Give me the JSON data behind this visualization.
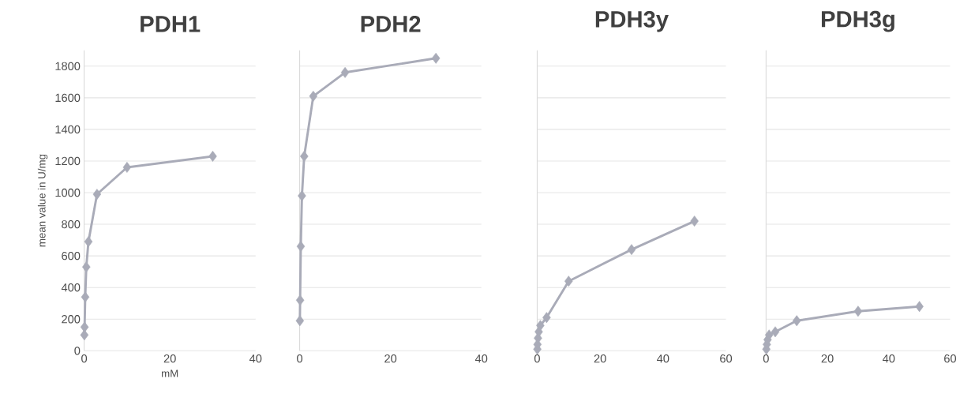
{
  "chart_data": [
    {
      "type": "line",
      "title": "PDH1",
      "xlabel": "mM",
      "ylabel": "mean value in U/mg",
      "color": "#a9abb8",
      "marker": "diamond",
      "grid": "y",
      "x": [
        0.05,
        0.1,
        0.25,
        0.5,
        1,
        3,
        10,
        30
      ],
      "values": [
        100,
        150,
        340,
        530,
        690,
        990,
        1160,
        1230
      ],
      "xlim": [
        0,
        40
      ],
      "xticks": [
        0,
        20,
        40
      ],
      "ylim": [
        0,
        1900
      ],
      "yticks": [
        0,
        200,
        400,
        600,
        800,
        1000,
        1200,
        1400,
        1600,
        1800
      ]
    },
    {
      "type": "line",
      "title": "PDH2",
      "color": "#a9abb8",
      "marker": "diamond",
      "grid": "y",
      "tick_labels": "x",
      "x": [
        0.05,
        0.1,
        0.25,
        0.5,
        1,
        3,
        10,
        30
      ],
      "values": [
        190,
        320,
        660,
        980,
        1230,
        1610,
        1760,
        1850
      ],
      "xlim": [
        0,
        40
      ],
      "xticks": [
        0,
        20,
        40
      ],
      "ylim": [
        0,
        1900
      ],
      "yticks": [
        0,
        200,
        400,
        600,
        800,
        1000,
        1200,
        1400,
        1600,
        1800
      ]
    },
    {
      "type": "line",
      "title": "PDH3y",
      "color": "#a9abb8",
      "marker": "diamond",
      "grid": "y",
      "tick_labels": "x",
      "x": [
        0.05,
        0.1,
        0.25,
        0.5,
        1,
        3,
        10,
        30,
        50
      ],
      "values": [
        10,
        40,
        80,
        120,
        160,
        210,
        440,
        640,
        820
      ],
      "xlim": [
        0,
        60
      ],
      "xticks": [
        0,
        20,
        40,
        60
      ],
      "ylim": [
        0,
        1900
      ],
      "yticks": [
        0,
        200,
        400,
        600,
        800,
        1000,
        1200,
        1400,
        1600,
        1800
      ]
    },
    {
      "type": "line",
      "title": "PDH3g",
      "color": "#a9abb8",
      "marker": "diamond",
      "grid": "y",
      "tick_labels": "x",
      "x": [
        0.1,
        0.25,
        0.5,
        1,
        3,
        10,
        30,
        50
      ],
      "values": [
        10,
        40,
        70,
        100,
        120,
        190,
        250,
        280
      ],
      "xlim": [
        0,
        60
      ],
      "xticks": [
        0,
        20,
        40,
        60
      ],
      "ylim": [
        0,
        1900
      ],
      "yticks": [
        0,
        200,
        400,
        600,
        800,
        1000,
        1200,
        1400,
        1600,
        1800
      ]
    }
  ]
}
